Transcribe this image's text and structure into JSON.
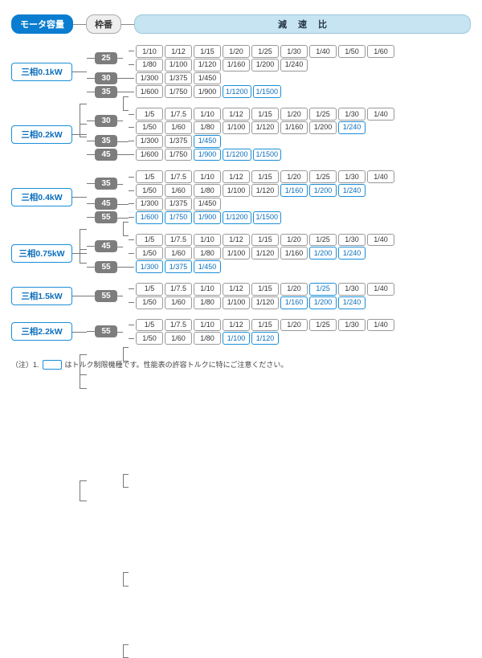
{
  "header": {
    "motor_label": "モータ容量",
    "frame_label": "枠番",
    "ratio_label": "減速比"
  },
  "colors": {
    "blue_fill": "#0a7dd0",
    "blue_border": "#1a8fd8",
    "blue_text": "#0a6ebd",
    "lightblue_fill": "#c7e4f2",
    "gray_fill": "#7d7d7d",
    "line": "#777777",
    "box_border": "#999999",
    "bg": "#ffffff"
  },
  "groups": [
    {
      "motor": "三相0.1kW",
      "frames": [
        {
          "frame": "25",
          "rows": [
            [
              {
                "v": "1/10"
              },
              {
                "v": "1/12"
              },
              {
                "v": "1/15"
              },
              {
                "v": "1/20"
              },
              {
                "v": "1/25"
              },
              {
                "v": "1/30"
              },
              {
                "v": "1/40"
              },
              {
                "v": "1/50"
              },
              {
                "v": "1/60"
              }
            ],
            [
              {
                "v": "1/80"
              },
              {
                "v": "1/100"
              },
              {
                "v": "1/120"
              },
              {
                "v": "1/160"
              },
              {
                "v": "1/200"
              },
              {
                "v": "1/240"
              }
            ]
          ]
        },
        {
          "frame": "30",
          "rows": [
            [
              {
                "v": "1/300"
              },
              {
                "v": "1/375"
              },
              {
                "v": "1/450"
              }
            ]
          ]
        },
        {
          "frame": "35",
          "rows": [
            [
              {
                "v": "1/600"
              },
              {
                "v": "1/750"
              },
              {
                "v": "1/900"
              },
              {
                "v": "1/1200",
                "hl": true
              },
              {
                "v": "1/1500",
                "hl": true
              }
            ]
          ]
        }
      ]
    },
    {
      "motor": "三相0.2kW",
      "frames": [
        {
          "frame": "30",
          "rows": [
            [
              {
                "v": "1/5"
              },
              {
                "v": "1/7.5"
              },
              {
                "v": "1/10"
              },
              {
                "v": "1/12"
              },
              {
                "v": "1/15"
              },
              {
                "v": "1/20"
              },
              {
                "v": "1/25"
              },
              {
                "v": "1/30"
              },
              {
                "v": "1/40"
              }
            ],
            [
              {
                "v": "1/50"
              },
              {
                "v": "1/60"
              },
              {
                "v": "1/80"
              },
              {
                "v": "1/100"
              },
              {
                "v": "1/120"
              },
              {
                "v": "1/160"
              },
              {
                "v": "1/200"
              },
              {
                "v": "1/240",
                "hl": true
              }
            ]
          ]
        },
        {
          "frame": "35",
          "rows": [
            [
              {
                "v": "1/300"
              },
              {
                "v": "1/375"
              },
              {
                "v": "1/450",
                "hl": true
              }
            ]
          ]
        },
        {
          "frame": "45",
          "rows": [
            [
              {
                "v": "1/600"
              },
              {
                "v": "1/750"
              },
              {
                "v": "1/900",
                "hl": true
              },
              {
                "v": "1/1200",
                "hl": true
              },
              {
                "v": "1/1500",
                "hl": true
              }
            ]
          ]
        }
      ]
    },
    {
      "motor": "三相0.4kW",
      "frames": [
        {
          "frame": "35",
          "rows": [
            [
              {
                "v": "1/5"
              },
              {
                "v": "1/7.5"
              },
              {
                "v": "1/10"
              },
              {
                "v": "1/12"
              },
              {
                "v": "1/15"
              },
              {
                "v": "1/20"
              },
              {
                "v": "1/25"
              },
              {
                "v": "1/30"
              },
              {
                "v": "1/40"
              }
            ],
            [
              {
                "v": "1/50"
              },
              {
                "v": "1/60"
              },
              {
                "v": "1/80"
              },
              {
                "v": "1/100"
              },
              {
                "v": "1/120"
              },
              {
                "v": "1/160",
                "hl": true
              },
              {
                "v": "1/200",
                "hl": true
              },
              {
                "v": "1/240",
                "hl": true
              }
            ]
          ]
        },
        {
          "frame": "45",
          "rows": [
            [
              {
                "v": "1/300"
              },
              {
                "v": "1/375"
              },
              {
                "v": "1/450"
              }
            ]
          ]
        },
        {
          "frame": "55",
          "rows": [
            [
              {
                "v": "1/600",
                "hl": true
              },
              {
                "v": "1/750",
                "hl": true
              },
              {
                "v": "1/900",
                "hl": true
              },
              {
                "v": "1/1200",
                "hl": true
              },
              {
                "v": "1/1500",
                "hl": true
              }
            ]
          ]
        }
      ]
    },
    {
      "motor": "三相0.75kW",
      "frames": [
        {
          "frame": "45",
          "rows": [
            [
              {
                "v": "1/5"
              },
              {
                "v": "1/7.5"
              },
              {
                "v": "1/10"
              },
              {
                "v": "1/12"
              },
              {
                "v": "1/15"
              },
              {
                "v": "1/20"
              },
              {
                "v": "1/25"
              },
              {
                "v": "1/30"
              },
              {
                "v": "1/40"
              }
            ],
            [
              {
                "v": "1/50"
              },
              {
                "v": "1/60"
              },
              {
                "v": "1/80"
              },
              {
                "v": "1/100"
              },
              {
                "v": "1/120"
              },
              {
                "v": "1/160"
              },
              {
                "v": "1/200",
                "hl": true
              },
              {
                "v": "1/240",
                "hl": true
              }
            ]
          ]
        },
        {
          "frame": "55",
          "rows": [
            [
              {
                "v": "1/300",
                "hl": true
              },
              {
                "v": "1/375",
                "hl": true
              },
              {
                "v": "1/450",
                "hl": true
              }
            ]
          ]
        }
      ]
    },
    {
      "motor": "三相1.5kW",
      "frames": [
        {
          "frame": "55",
          "rows": [
            [
              {
                "v": "1/5"
              },
              {
                "v": "1/7.5"
              },
              {
                "v": "1/10"
              },
              {
                "v": "1/12"
              },
              {
                "v": "1/15"
              },
              {
                "v": "1/20"
              },
              {
                "v": "1/25",
                "hl": true
              },
              {
                "v": "1/30"
              },
              {
                "v": "1/40"
              }
            ],
            [
              {
                "v": "1/50"
              },
              {
                "v": "1/60"
              },
              {
                "v": "1/80"
              },
              {
                "v": "1/100"
              },
              {
                "v": "1/120"
              },
              {
                "v": "1/160",
                "hl": true
              },
              {
                "v": "1/200",
                "hl": true
              },
              {
                "v": "1/240",
                "hl": true
              }
            ]
          ]
        }
      ]
    },
    {
      "motor": "三相2.2kW",
      "frames": [
        {
          "frame": "55",
          "rows": [
            [
              {
                "v": "1/5"
              },
              {
                "v": "1/7.5"
              },
              {
                "v": "1/10"
              },
              {
                "v": "1/12"
              },
              {
                "v": "1/15"
              },
              {
                "v": "1/20"
              },
              {
                "v": "1/25"
              },
              {
                "v": "1/30"
              },
              {
                "v": "1/40"
              }
            ],
            [
              {
                "v": "1/50"
              },
              {
                "v": "1/60"
              },
              {
                "v": "1/80"
              },
              {
                "v": "1/100",
                "hl": true
              },
              {
                "v": "1/120",
                "hl": true
              }
            ]
          ]
        }
      ]
    }
  ],
  "note": {
    "prefix": "（注）1.",
    "suffix": "はトルク制限機種です。性能表の許容トルクに特にご注意ください。"
  }
}
